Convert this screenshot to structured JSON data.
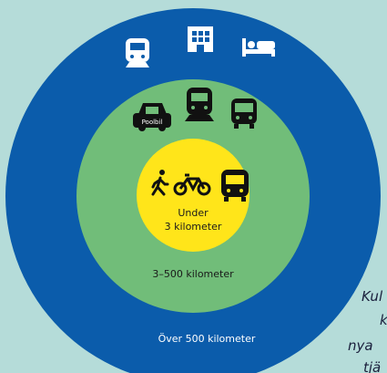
{
  "rings": [
    {
      "labels": [
        "Över 500 kilometer"
      ]
    },
    {
      "labels": [
        "3–500 kilometer"
      ],
      "icon_text": "Poolbil"
    },
    {
      "labels": [
        "Under",
        "3 kilometer"
      ]
    }
  ],
  "side_text": [
    "Kul",
    "k",
    "nya",
    "tjä"
  ]
}
